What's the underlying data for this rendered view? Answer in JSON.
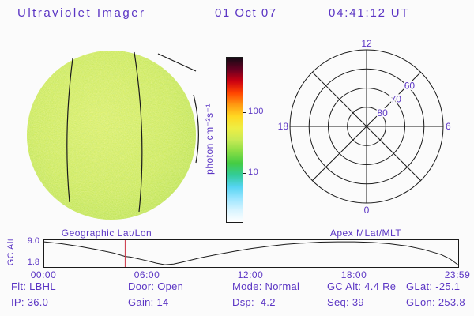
{
  "header": {
    "title": "Ultraviolet Imager",
    "date": "01 Oct 07",
    "time": "04:41:12 UT"
  },
  "colors": {
    "text": "#5b35c4",
    "plot_lines": "#1a1a1a",
    "marker_red": "#cc3344",
    "background": "#fbfbfb"
  },
  "disk": {
    "label": "Geographic Lat/Lon",
    "colors": {
      "center": "#dcf068",
      "mid": "#cdea58",
      "edge": "#b7e14c",
      "speckle_bright": "#f7f76e",
      "speckle_dark": "#79c23e"
    }
  },
  "status": {
    "row1": [
      "Flt: LBHL",
      "Door: Open",
      "Mode: Normal",
      "GC Alt: 4.4 Re",
      "GLat: -25.1"
    ],
    "row2": [
      "IP: 36.0",
      "Gain: 14",
      "Dsp:  4.2",
      "Seq: 39",
      "GLon: 253.8"
    ]
  },
  "chart_data": [
    {
      "id": "gc_alt_strip",
      "type": "line",
      "title": "Spacecraft geocentric altitude vs universal time",
      "ylabel": "GC Alt",
      "xlabel": "UT",
      "x_ticks": [
        "00:00",
        "06:00",
        "12:00",
        "18:00",
        "23:59"
      ],
      "y_ticks": [
        "9.0",
        "1.8"
      ],
      "ylim": [
        1.2,
        9.4
      ],
      "xlim_hours": [
        0,
        24
      ],
      "x_hours": [
        0,
        1,
        2,
        3,
        4,
        4.69,
        5,
        6,
        6.5,
        7,
        7.5,
        8,
        9,
        10,
        11,
        12,
        13,
        14,
        15,
        16,
        17,
        18,
        19,
        20,
        21,
        22,
        23,
        23.5,
        23.98
      ],
      "values": [
        9.0,
        8.4,
        7.6,
        6.6,
        5.5,
        4.4,
        4.2,
        3.0,
        2.3,
        1.8,
        2.0,
        2.6,
        3.9,
        5.0,
        6.0,
        6.9,
        7.6,
        8.2,
        8.6,
        8.9,
        9.0,
        9.0,
        8.8,
        8.4,
        7.7,
        6.6,
        5.0,
        3.7,
        1.8
      ],
      "marker_hour": 4.69,
      "marker_color": "#cc3344",
      "line_color": "#1a1a1a",
      "grid": false
    },
    {
      "id": "apex_polar_grid",
      "type": "polar",
      "label": "Apex MLat/MLT",
      "mlat_rings": [
        50,
        60,
        70,
        80
      ],
      "ring_labels": [
        "60",
        "70",
        "80"
      ],
      "mlt_labels": {
        "top": "12",
        "left": "18",
        "right": "6",
        "bottom": "0"
      },
      "spokes_every_deg": 45
    },
    {
      "id": "uv_colorbar",
      "type": "colorbar",
      "scale": "log",
      "units_label": "photon cm⁻²s⁻¹",
      "tick_labels": [
        "100",
        "10"
      ],
      "tick_positions_from_top": [
        0.33,
        0.7
      ],
      "stops_bottom_to_top": [
        "#ffffff",
        "#d8f4ff",
        "#9ce6ff",
        "#55d4f2",
        "#33cc99",
        "#44cc44",
        "#88dd44",
        "#c8ea55",
        "#eeee44",
        "#ffd822",
        "#ff9911",
        "#ff4400",
        "#cc0011",
        "#660022",
        "#140a14"
      ]
    }
  ]
}
